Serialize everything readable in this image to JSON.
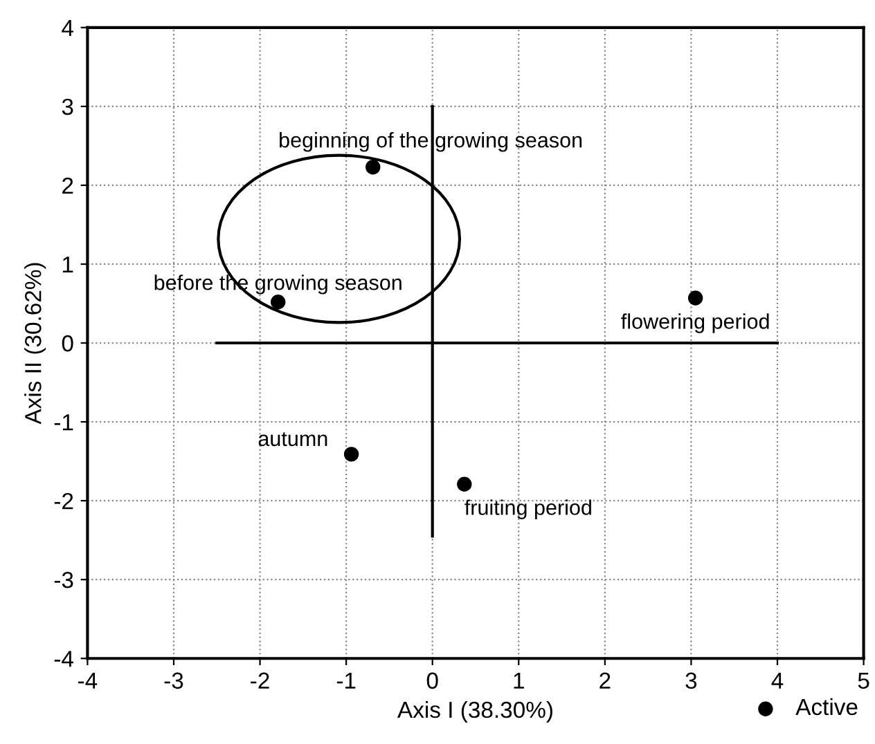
{
  "chart_data": {
    "type": "scatter",
    "xlabel": "Axis I (38.30%)",
    "ylabel": "Axis II (30.62%)",
    "xlim": [
      -4,
      5
    ],
    "ylim": [
      -4,
      4
    ],
    "xticks": [
      -4,
      -3,
      -2,
      -1,
      0,
      1,
      2,
      3,
      4,
      5
    ],
    "yticks": [
      -4,
      -3,
      -2,
      -1,
      0,
      1,
      2,
      3,
      4
    ],
    "grid": true,
    "legend": "bottom right",
    "marker": "circle",
    "series": [
      {
        "name": "Active",
        "color": "#000000",
        "x": [
          -0.69,
          -1.79,
          3.05,
          -0.94,
          0.37
        ],
        "values": [
          2.23,
          0.52,
          0.57,
          -1.41,
          -1.79
        ]
      },
      {
        "type": "line",
        "marker": "none",
        "color": "#000000",
        "x": [
          -2.5,
          4
        ],
        "values": [
          0,
          0
        ]
      },
      {
        "type": "line",
        "marker": "none",
        "color": "#000000",
        "x": [
          0,
          0
        ],
        "values": [
          3,
          -2.45
        ]
      }
    ],
    "annotations": [
      {
        "text": "beginning of the growing season",
        "x": -0.69,
        "y": 2.23
      },
      {
        "text": "before the growing season",
        "x": -1.79,
        "y": 0.52
      },
      {
        "text": "flowering period",
        "x": 3.05,
        "y": 0.57
      },
      {
        "text": "autumn",
        "x": -0.94,
        "y": -1.41
      },
      {
        "text": "fruiting period",
        "x": 0.37,
        "y": -1.79
      }
    ]
  }
}
